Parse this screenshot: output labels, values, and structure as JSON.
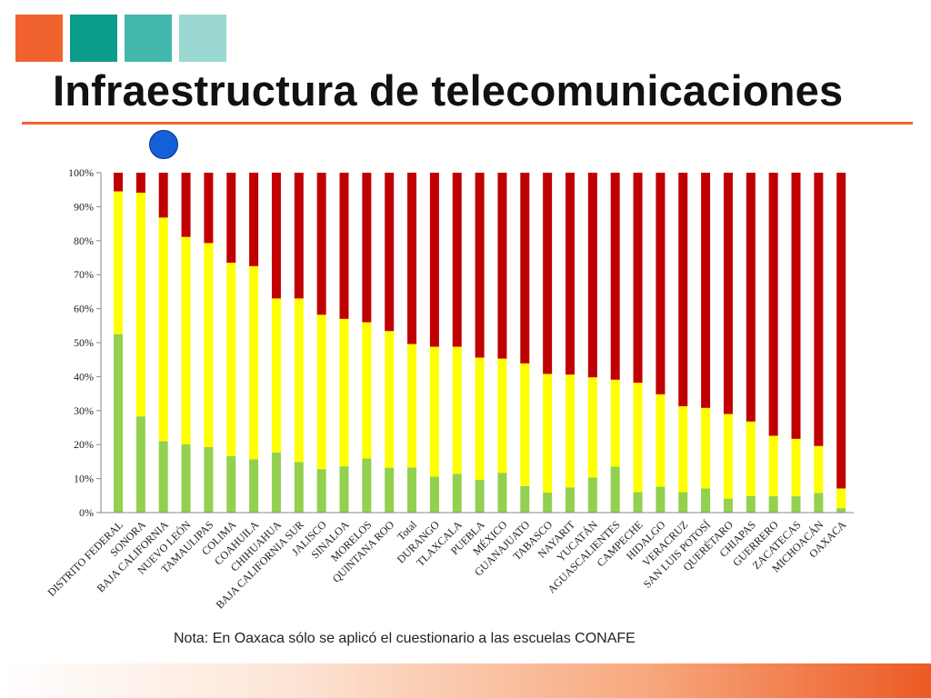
{
  "title": "Infraestructura de telecomunicaciones",
  "note": "Nota: En Oaxaca sólo se aplicó el cuestionario a las escuelas CONAFE",
  "colors": {
    "square_1": "#f0632f",
    "square_2": "#0b9b8b",
    "square_3": "#42b8ad",
    "square_4": "#9bd8d1",
    "title_rule": "#f0632f",
    "marker_dot": "#1560d8"
  },
  "chart_data": {
    "type": "bar",
    "stacked": true,
    "percent": true,
    "ylim": [
      0,
      100
    ],
    "yticks": [
      "0%",
      "10%",
      "20%",
      "30%",
      "40%",
      "50%",
      "60%",
      "70%",
      "80%",
      "90%",
      "100%"
    ],
    "categories": [
      "DISTRITO FEDERAL",
      "SONORA",
      "BAJA CALIFORNIA",
      "NUEVO LEÓN",
      "TAMAULIPAS",
      "COLIMA",
      "COAHUILA",
      "CHIHUAHUA",
      "BAJA CALIFORNIA SUR",
      "JALISCO",
      "SINALOA",
      "MORELOS",
      "QUINTANA ROO",
      "Total",
      "DURANGO",
      "TLAXCALA",
      "PUEBLA",
      "MÉXICO",
      "GUANAJUATO",
      "TABASCO",
      "NAYARIT",
      "YUCATÁN",
      "AGUASCALIENTES",
      "CAMPECHE",
      "HIDALGO",
      "VERACRUZ",
      "SAN LUIS POTOSÍ",
      "QUERÉTARO",
      "CHIAPAS",
      "GUERRERO",
      "ZACATECAS",
      "MICHOACÁN",
      "OAXACA"
    ],
    "series": [
      {
        "color": "#92d050",
        "values": [
          52.5,
          28.3,
          21,
          20.1,
          19.3,
          16.6,
          15.7,
          17.7,
          14.9,
          12.8,
          13.6,
          15.9,
          13.2,
          13.3,
          10.6,
          11.4,
          9.7,
          11.7,
          7.8,
          5.9,
          7.4,
          10.3,
          13.5,
          6,
          7.6,
          6,
          7.1,
          4.1,
          4.9,
          4.8,
          4.8,
          5.8,
          1.3
        ]
      },
      {
        "color": "#ffff00",
        "values": [
          42,
          65.8,
          65.8,
          61,
          60,
          56.9,
          56.8,
          45.3,
          48.1,
          45.4,
          43.4,
          40.1,
          40.2,
          36.3,
          38.2,
          37.4,
          35.9,
          33.6,
          36.1,
          34.9,
          33.2,
          29.5,
          25.6,
          32.2,
          27.2,
          25.3,
          23.7,
          24.9,
          21.9,
          17.8,
          16.9,
          13.8,
          5.8
        ]
      },
      {
        "color": "#c00000",
        "values": [
          5.5,
          5.9,
          13.2,
          18.9,
          20.7,
          26.5,
          27.5,
          37,
          37,
          41.8,
          43,
          44,
          46.6,
          50.4,
          51.2,
          51.2,
          54.4,
          54.7,
          56.1,
          59.2,
          59.4,
          60.2,
          60.9,
          61.8,
          65.2,
          68.7,
          69.2,
          71,
          73.2,
          77.4,
          78.3,
          80.4,
          92.9
        ]
      }
    ]
  }
}
